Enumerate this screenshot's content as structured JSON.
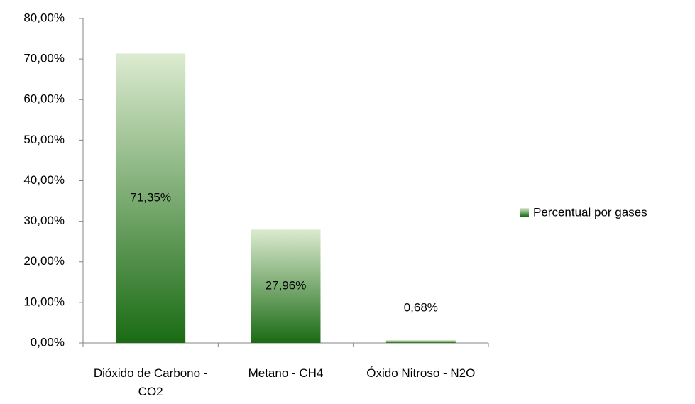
{
  "chart_data": {
    "type": "bar",
    "categories": [
      "Dióxido de Carbono - CO2",
      "Metano - CH4",
      "Óxido Nitroso - N2O"
    ],
    "series": [
      {
        "name": "Percentual por gases",
        "color": "#1a6b14",
        "values": [
          71.35,
          27.96,
          0.68
        ],
        "value_labels": [
          "71,35%",
          "27,96%",
          "0,68%"
        ]
      }
    ],
    "ylim": [
      0,
      80
    ],
    "yticks": [
      {
        "value": 0,
        "label": "0,00%"
      },
      {
        "value": 10,
        "label": "10,00%"
      },
      {
        "value": 20,
        "label": "20,00%"
      },
      {
        "value": 30,
        "label": "30,00%"
      },
      {
        "value": 40,
        "label": "40,00%"
      },
      {
        "value": 50,
        "label": "50,00%"
      },
      {
        "value": 60,
        "label": "60,00%"
      },
      {
        "value": 70,
        "label": "70,00%"
      },
      {
        "value": 80,
        "label": "80,00%"
      }
    ],
    "grid": false,
    "legend": "right"
  }
}
